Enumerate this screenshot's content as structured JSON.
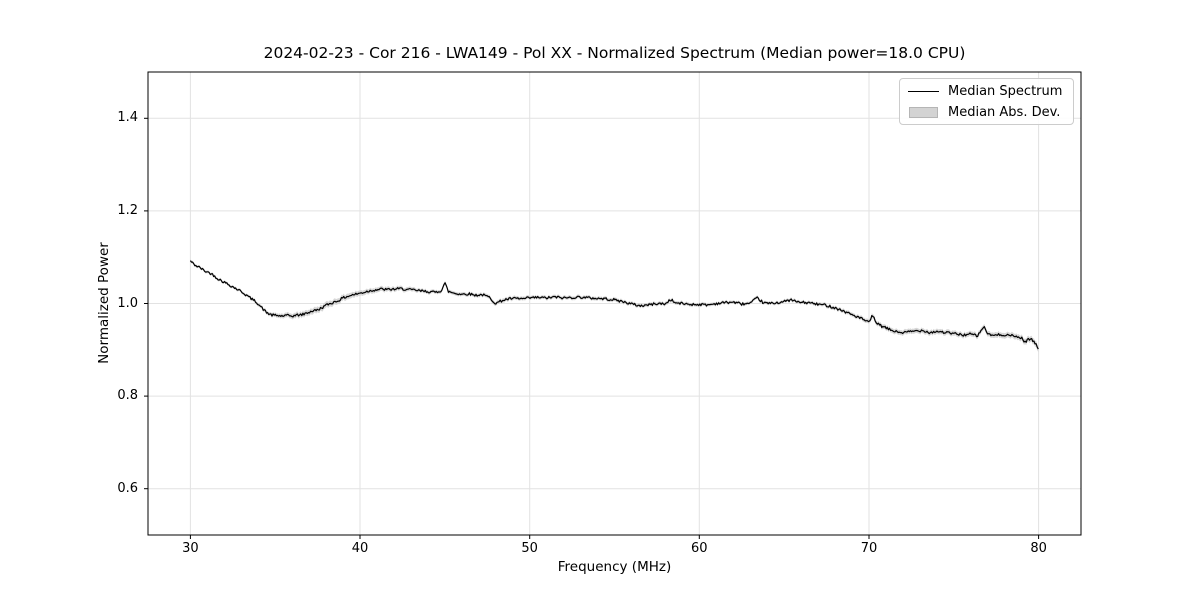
{
  "chart_data": {
    "type": "line",
    "title": "2024-02-23 - Cor 216 - LWA149 - Pol XX - Normalized Spectrum (Median power=18.0 CPU)",
    "xlabel": "Frequency (MHz)",
    "ylabel": "Normalized Power",
    "xlim": [
      27.5,
      82.5
    ],
    "ylim": [
      0.5,
      1.5
    ],
    "xticks": [
      30,
      40,
      50,
      60,
      70,
      80
    ],
    "xtick_labels": [
      "30",
      "40",
      "50",
      "60",
      "70",
      "80"
    ],
    "yticks": [
      0.6,
      0.8,
      1.0,
      1.2,
      1.4
    ],
    "ytick_labels": [
      "0.6",
      "0.8",
      "1.0",
      "1.2",
      "1.4"
    ],
    "grid": true,
    "grid_color": "#e2e2e2",
    "legend": {
      "position": "upper right",
      "entries": [
        {
          "label": "Median Spectrum",
          "type": "line",
          "color": "#000000"
        },
        {
          "label": "Median Abs. Dev.",
          "type": "patch",
          "color": "#d3d3d3"
        }
      ]
    },
    "noise_amplitude": 0.0028,
    "series": [
      {
        "name": "Median Spectrum",
        "type": "line",
        "color": "#000000",
        "x": [
          30.0,
          30.2,
          30.4,
          30.6,
          30.8,
          31.0,
          31.2,
          31.4,
          31.6,
          31.8,
          32.0,
          32.3,
          32.6,
          33.0,
          33.3,
          33.6,
          33.9,
          34.2,
          34.5,
          34.8,
          35.1,
          35.4,
          35.7,
          36.0,
          36.3,
          36.6,
          36.9,
          37.2,
          37.5,
          37.8,
          38.1,
          38.4,
          38.7,
          39.0,
          39.3,
          39.6,
          40.0,
          40.4,
          40.8,
          41.2,
          41.6,
          42.0,
          42.4,
          42.8,
          43.2,
          43.6,
          44.0,
          44.4,
          44.8,
          45.0,
          45.2,
          45.6,
          46.0,
          46.4,
          46.8,
          47.2,
          47.6,
          48.0,
          48.4,
          48.8,
          49.2,
          49.6,
          50.0,
          50.5,
          51.0,
          51.5,
          52.0,
          52.5,
          53.0,
          53.5,
          54.0,
          54.5,
          55.0,
          55.5,
          56.0,
          56.5,
          57.0,
          57.5,
          58.0,
          58.3,
          58.6,
          59.0,
          59.5,
          60.0,
          60.5,
          61.0,
          61.5,
          62.0,
          62.5,
          63.0,
          63.4,
          63.8,
          64.2,
          64.6,
          65.0,
          65.4,
          65.8,
          66.2,
          66.6,
          67.0,
          67.4,
          67.8,
          68.2,
          68.6,
          69.0,
          69.4,
          69.8,
          70.0,
          70.2,
          70.5,
          70.8,
          71.2,
          71.6,
          72.0,
          72.4,
          72.8,
          73.2,
          73.6,
          74.0,
          74.4,
          74.8,
          75.2,
          75.6,
          76.0,
          76.4,
          76.8,
          77.0,
          77.4,
          77.8,
          78.2,
          78.6,
          79.0,
          79.2,
          79.4,
          79.6,
          79.8,
          80.0
        ],
        "y": [
          1.092,
          1.085,
          1.08,
          1.077,
          1.071,
          1.068,
          1.065,
          1.06,
          1.054,
          1.05,
          1.046,
          1.04,
          1.034,
          1.026,
          1.018,
          1.01,
          1.003,
          0.991,
          0.98,
          0.975,
          0.974,
          0.973,
          0.974,
          0.973,
          0.975,
          0.976,
          0.98,
          0.984,
          0.986,
          0.992,
          0.998,
          1.002,
          1.006,
          1.012,
          1.016,
          1.019,
          1.022,
          1.026,
          1.029,
          1.031,
          1.03,
          1.031,
          1.032,
          1.03,
          1.029,
          1.027,
          1.026,
          1.024,
          1.028,
          1.045,
          1.026,
          1.022,
          1.02,
          1.021,
          1.018,
          1.019,
          1.014,
          1.0,
          1.007,
          1.01,
          1.011,
          1.01,
          1.012,
          1.013,
          1.012,
          1.014,
          1.012,
          1.013,
          1.014,
          1.012,
          1.011,
          1.01,
          1.008,
          1.004,
          0.999,
          0.995,
          0.997,
          1.0,
          0.999,
          1.009,
          1.001,
          1.0,
          0.998,
          0.998,
          0.997,
          1.0,
          1.002,
          1.003,
          0.999,
          1.0,
          1.012,
          1.001,
          1.0,
          1.002,
          1.004,
          1.008,
          1.003,
          1.002,
          1.001,
          0.998,
          0.997,
          0.993,
          0.988,
          0.982,
          0.976,
          0.97,
          0.963,
          0.958,
          0.974,
          0.956,
          0.95,
          0.944,
          0.939,
          0.937,
          0.939,
          0.941,
          0.942,
          0.937,
          0.94,
          0.938,
          0.936,
          0.934,
          0.932,
          0.934,
          0.93,
          0.951,
          0.933,
          0.931,
          0.933,
          0.932,
          0.929,
          0.926,
          0.916,
          0.924,
          0.922,
          0.914,
          0.901
        ]
      },
      {
        "name": "Median Abs. Dev.",
        "type": "band",
        "color": "#d3d3d3",
        "center": "Median Spectrum",
        "x": [
          30,
          33,
          34.5,
          35.5,
          36.5,
          37.5,
          38.5,
          39.5,
          40.5,
          42,
          44,
          45,
          47,
          48.5,
          50,
          55,
          58,
          62,
          66,
          68,
          69.5,
          70.5,
          72,
          74,
          76,
          78,
          80
        ],
        "half_width": [
          0.003,
          0.003,
          0.004,
          0.005,
          0.006,
          0.0065,
          0.0065,
          0.006,
          0.0055,
          0.005,
          0.004,
          0.004,
          0.004,
          0.0045,
          0.004,
          0.004,
          0.004,
          0.0035,
          0.0035,
          0.004,
          0.0045,
          0.005,
          0.0055,
          0.0055,
          0.0055,
          0.006,
          0.0065
        ]
      }
    ]
  }
}
